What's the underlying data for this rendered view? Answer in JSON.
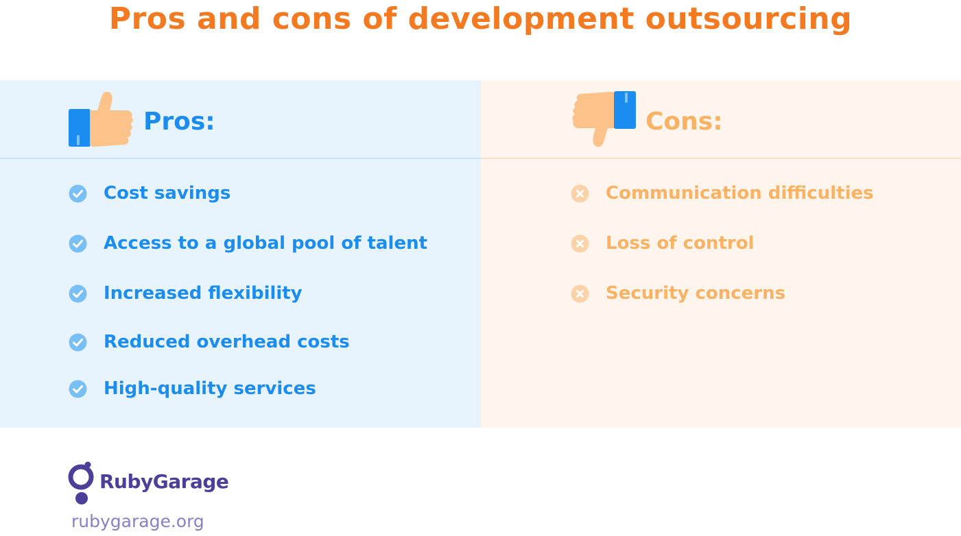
{
  "title": "Pros and cons of development outsourcing",
  "pros": {
    "heading": "Pros:",
    "items": [
      "Cost savings",
      "Access to a global pool of talent",
      "Increased flexibility",
      "Reduced overhead costs",
      "High-quality services"
    ]
  },
  "cons": {
    "heading": "Cons:",
    "items": [
      "Communication difficulties",
      "Loss of control",
      "Security concerns"
    ]
  },
  "footer": {
    "brand": "RubyGarage",
    "url": "rubygarage.org"
  },
  "icons": {
    "pros_item": "check-circle-icon",
    "cons_item": "x-circle-icon",
    "pros_heading": "thumbs-up-icon",
    "cons_heading": "thumbs-down-icon",
    "logo": "rubygarage-logo-icon"
  },
  "colors": {
    "title": "#f47a22",
    "pros_text": "#1b8cf0",
    "cons_text": "#fbb265",
    "pros_bg": "#e8f4fd",
    "cons_bg": "#fff5ec",
    "brand": "#4b3f9a"
  }
}
